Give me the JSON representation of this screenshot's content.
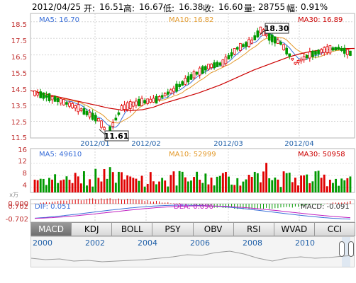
{
  "header": {
    "date": "2012/04/25",
    "open_label": "开:",
    "open": "16.51",
    "high_label": "高:",
    "high": "16.67",
    "low_label": "低:",
    "low": "16.38",
    "close_label": "收:",
    "close": "16.60",
    "volume_label": "量:",
    "volume": "28755",
    "change_label": "幅:",
    "change": "0.91%"
  },
  "price_panel": {
    "ma5_label": "MA5: 16.70",
    "ma10_label": "MA10: 16.82",
    "ma30_label": "MA30: 16.89",
    "high_annotation": "18.30",
    "low_annotation": "11.61",
    "yticks": [
      "18.5",
      "17.5",
      "16.5",
      "15.5",
      "14.5",
      "13.5",
      "12.5",
      "11.5"
    ],
    "xticks": [
      "2012/01",
      "2012/02",
      "2012/03",
      "2012/04"
    ]
  },
  "volume_panel": {
    "ma5_label": "MA5: 49610",
    "ma10_label": "MA10: 52999",
    "ma30_label": "MA30: 50958",
    "yticks": [
      "16",
      "12",
      "8",
      "4"
    ],
    "unit": "x万"
  },
  "macd_panel": {
    "dif_label": "DIF: 0.051",
    "dea_label": "DEA: 0.096",
    "macd_label": "MACD: -0.091",
    "yticks": [
      "0.702",
      "0.000",
      "-0.702"
    ]
  },
  "tabs": [
    "MACD",
    "KDJ",
    "BOLL",
    "PSY",
    "OBV",
    "RSI",
    "WVAD",
    "CCI"
  ],
  "navigator": {
    "years": [
      "2000",
      "2002",
      "2004",
      "2006",
      "2008",
      "2010"
    ]
  },
  "colors": {
    "up": "#e00000",
    "down": "#009900",
    "ma5": "#3a6fd8",
    "ma10": "#e39a2c",
    "ma30": "#cc0000"
  },
  "chart_data": {
    "type": "candlestick",
    "ylim": [
      11.5,
      19.0
    ],
    "low_point": 11.61,
    "high_point": 18.3,
    "ma30_path": [
      14.35,
      14.2,
      14.05,
      13.9,
      13.75,
      13.6,
      13.45,
      13.3,
      13.2,
      13.15,
      13.2,
      13.35,
      13.6,
      13.8,
      14.0,
      14.2,
      14.45,
      14.7,
      15.0,
      15.3,
      15.6,
      15.85,
      16.1,
      16.35,
      16.55,
      16.7,
      16.8,
      16.85,
      16.88,
      16.89
    ],
    "volume_ylim": [
      0,
      16
    ]
  }
}
